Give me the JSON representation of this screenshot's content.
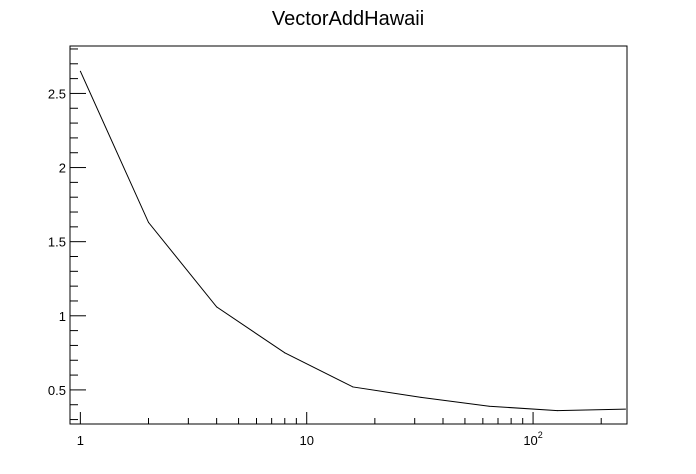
{
  "chart_data": {
    "type": "line",
    "title": "VectorAddHawaii",
    "xlabel": "",
    "ylabel": "",
    "x_scale": "log",
    "xlim": [
      0.9,
      260
    ],
    "ylim": [
      0.27,
      2.82
    ],
    "x_tick_labels": [
      {
        "value": 1,
        "base": "1",
        "exp": ""
      },
      {
        "value": 10,
        "base": "10",
        "exp": ""
      },
      {
        "value": 100,
        "base": "10",
        "exp": "2"
      }
    ],
    "y_tick_labels": [
      {
        "value": 0.5,
        "label": "0.5"
      },
      {
        "value": 1,
        "label": "1"
      },
      {
        "value": 1.5,
        "label": "1.5"
      },
      {
        "value": 2,
        "label": "2"
      },
      {
        "value": 2.5,
        "label": "2.5"
      }
    ],
    "series": [
      {
        "color": "#000000",
        "x": [
          1,
          2,
          4,
          8,
          16,
          32,
          64,
          128,
          256
        ],
        "y": [
          2.65,
          1.63,
          1.06,
          0.75,
          0.52,
          0.45,
          0.39,
          0.36,
          0.37
        ]
      }
    ],
    "grid": false,
    "legend": "none"
  }
}
